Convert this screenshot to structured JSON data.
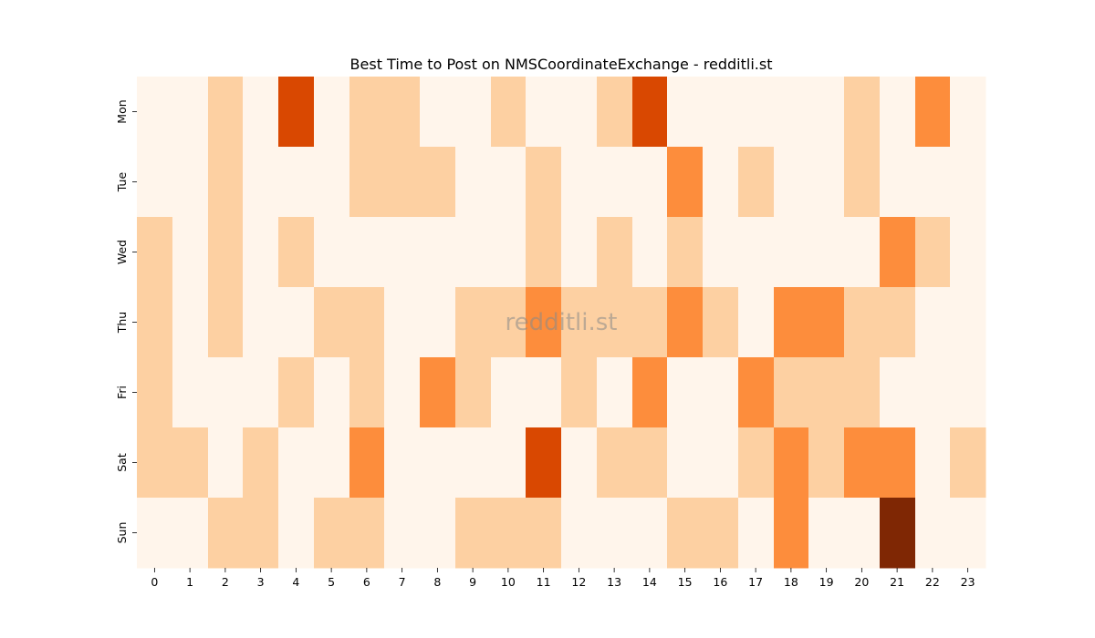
{
  "chart_data": {
    "type": "heatmap",
    "title": "Best Time to Post on NMSCoordinateExchange - redditli.st",
    "watermark": "redditli.st",
    "x_categories": [
      "0",
      "1",
      "2",
      "3",
      "4",
      "5",
      "6",
      "7",
      "8",
      "9",
      "10",
      "11",
      "12",
      "13",
      "14",
      "15",
      "16",
      "17",
      "18",
      "19",
      "20",
      "21",
      "22",
      "23"
    ],
    "y_categories": [
      "Mon",
      "Tue",
      "Wed",
      "Thu",
      "Fri",
      "Sat",
      "Sun"
    ],
    "xlabel": "",
    "ylabel": "",
    "value_range": [
      0,
      4
    ],
    "colormap": [
      "#fff5eb",
      "#fdd0a2",
      "#fd8d3c",
      "#d94801",
      "#7f2704"
    ],
    "values": [
      [
        0,
        0,
        1,
        0,
        3,
        0,
        1,
        1,
        0,
        0,
        1,
        0,
        0,
        1,
        3,
        0,
        0,
        0,
        0,
        0,
        1,
        0,
        2,
        0
      ],
      [
        0,
        0,
        1,
        0,
        0,
        0,
        1,
        1,
        1,
        0,
        0,
        1,
        0,
        0,
        0,
        2,
        0,
        1,
        0,
        0,
        1,
        0,
        0,
        0
      ],
      [
        1,
        0,
        1,
        0,
        1,
        0,
        0,
        0,
        0,
        0,
        0,
        1,
        0,
        1,
        0,
        1,
        0,
        0,
        0,
        0,
        0,
        2,
        1,
        0
      ],
      [
        1,
        0,
        1,
        0,
        0,
        1,
        1,
        0,
        0,
        1,
        1,
        2,
        1,
        1,
        1,
        2,
        1,
        0,
        2,
        2,
        1,
        1,
        0,
        0
      ],
      [
        1,
        0,
        0,
        0,
        1,
        0,
        1,
        0,
        2,
        1,
        0,
        0,
        1,
        0,
        2,
        0,
        0,
        2,
        1,
        1,
        1,
        0,
        0,
        0
      ],
      [
        1,
        1,
        0,
        1,
        0,
        0,
        2,
        0,
        0,
        0,
        0,
        3,
        0,
        1,
        1,
        0,
        0,
        1,
        2,
        1,
        2,
        2,
        0,
        1
      ],
      [
        0,
        0,
        1,
        1,
        0,
        1,
        1,
        0,
        0,
        1,
        1,
        1,
        0,
        0,
        0,
        1,
        1,
        0,
        2,
        0,
        0,
        4,
        0,
        0
      ]
    ]
  }
}
